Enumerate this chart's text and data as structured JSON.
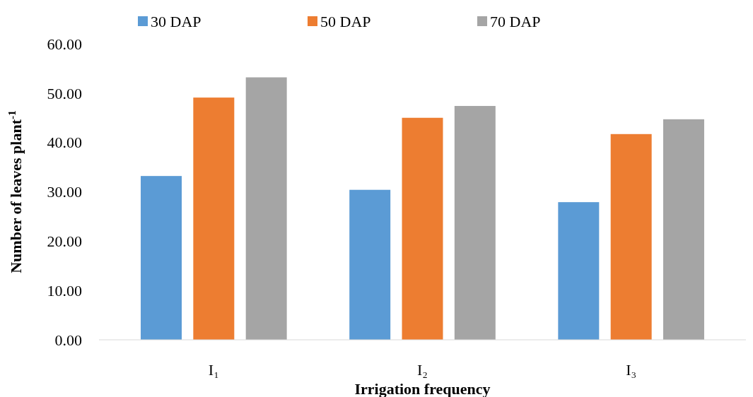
{
  "chart_data": {
    "type": "bar",
    "xlabel": "Irrigation frequency",
    "ylabel": "Number of leaves plant$^{-1}$",
    "categories": [
      "I₁",
      "I₂",
      "I₃"
    ],
    "series": [
      {
        "name": "30 DAP",
        "color": "#5b9bd5",
        "values": [
          33.2,
          30.4,
          27.9
        ]
      },
      {
        "name": "50 DAP",
        "color": "#ed7d31",
        "values": [
          49.1,
          45.0,
          41.7
        ]
      },
      {
        "name": "70 DAP",
        "color": "#a5a5a5",
        "values": [
          53.2,
          47.4,
          44.7
        ]
      }
    ],
    "ylim": [
      0,
      60
    ],
    "yticks": [
      {
        "value": 0,
        "label": "0.00"
      },
      {
        "value": 10,
        "label": "10.00"
      },
      {
        "value": 20,
        "label": "20.00"
      },
      {
        "value": 30,
        "label": "30.00"
      },
      {
        "value": 40,
        "label": "40.00"
      },
      {
        "value": 50,
        "label": "50.00"
      },
      {
        "value": 60,
        "label": "60.00"
      }
    ],
    "grid": false,
    "legend": "top"
  }
}
